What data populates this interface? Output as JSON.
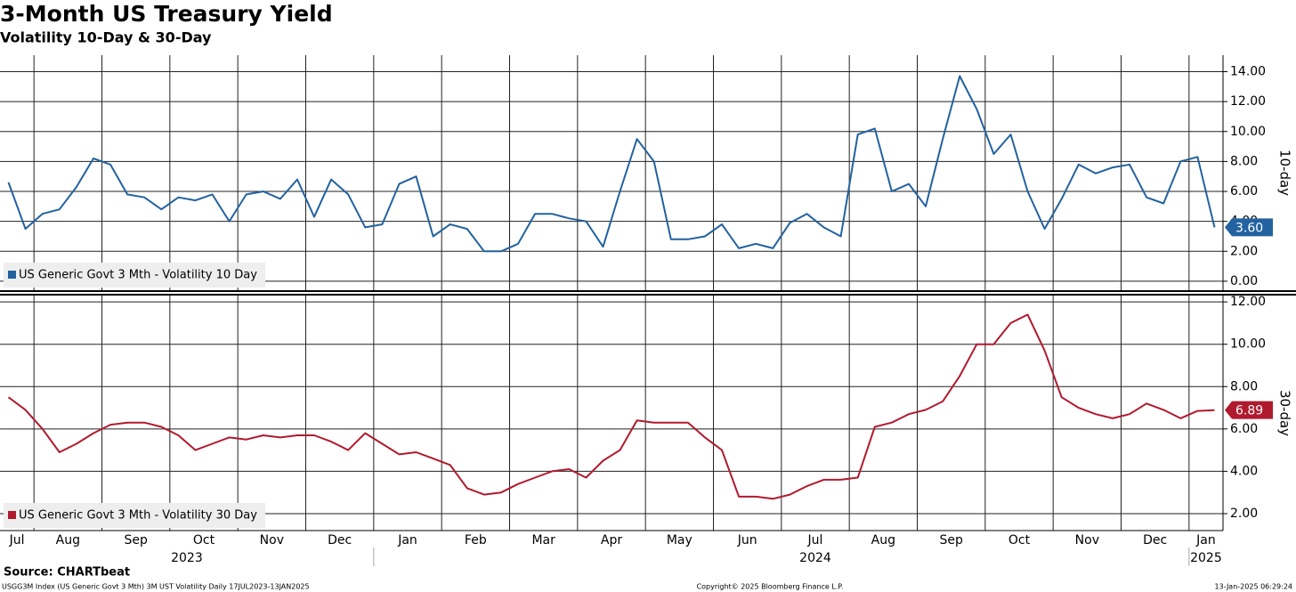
{
  "title": "3-Month US Treasury Yield",
  "subtitle": "Volatility 10-Day & 30-Day",
  "source": "Source: CHARTbeat",
  "footer": {
    "left": "USGG3M Index (US Generic Govt 3 Mth) 3M UST Volatility  Daily 17JUL2023-13JAN2025",
    "center": "Copyright© 2025 Bloomberg Finance L.P.",
    "right": "13-Jan-2025 06:29:24"
  },
  "chart_data": {
    "type": "line",
    "layout": "stacked",
    "grid": true,
    "categories": [
      null,
      "Jul",
      null,
      null,
      "Aug",
      null,
      null,
      null,
      "Sep",
      null,
      null,
      null,
      "Oct",
      null,
      null,
      null,
      "Nov",
      null,
      null,
      null,
      "Dec",
      null,
      null,
      null,
      "Jan",
      null,
      null,
      null,
      "Feb",
      null,
      null,
      null,
      "Mar",
      null,
      null,
      null,
      "Apr",
      null,
      null,
      null,
      "May",
      null,
      null,
      null,
      "Jun",
      null,
      null,
      null,
      "Jul",
      null,
      null,
      null,
      "Aug",
      null,
      null,
      null,
      "Sep",
      null,
      null,
      null,
      "Oct",
      null,
      null,
      null,
      "Nov",
      null,
      null,
      null,
      "Dec",
      null,
      null,
      "Jan"
    ],
    "years": [
      null,
      null,
      null,
      null,
      null,
      null,
      null,
      null,
      null,
      null,
      null,
      "2023",
      null,
      null,
      null,
      null,
      null,
      null,
      null,
      null,
      null,
      null,
      null,
      null,
      null,
      null,
      null,
      null,
      null,
      null,
      null,
      null,
      null,
      null,
      null,
      null,
      null,
      null,
      null,
      null,
      null,
      null,
      null,
      null,
      null,
      null,
      null,
      null,
      "2024",
      null,
      null,
      null,
      null,
      null,
      null,
      null,
      null,
      null,
      null,
      null,
      null,
      null,
      null,
      null,
      null,
      null,
      null,
      null,
      null,
      null,
      null,
      "2025"
    ],
    "ylabel": "10-day",
    "y2label": "30-day",
    "ylim": [
      -0.6,
      15.1
    ],
    "yticks": [
      {
        "value": 0,
        "label": "0.00"
      },
      {
        "value": 2,
        "label": "2.00"
      },
      {
        "value": 4,
        "label": "4.00"
      },
      {
        "value": 6,
        "label": "6.00"
      },
      {
        "value": 8,
        "label": "8.00"
      },
      {
        "value": 10,
        "label": "10.00"
      },
      {
        "value": 12,
        "label": "12.00"
      },
      {
        "value": 14,
        "label": "14.00"
      }
    ],
    "y2lim": [
      1.2,
      12.3
    ],
    "y2ticks": [
      {
        "value": 2,
        "label": "2.00"
      },
      {
        "value": 4,
        "label": "4.00"
      },
      {
        "value": 6,
        "label": "6.00"
      },
      {
        "value": 8,
        "label": "8.00"
      },
      {
        "value": 10,
        "label": "10.00"
      },
      {
        "value": 12,
        "label": "12.00"
      }
    ],
    "series": [
      {
        "name": "US Generic Govt 3 Mth - Volatility 10 Day",
        "color": "#2262a0",
        "axis": "y",
        "values": [
          6.6,
          3.5,
          4.5,
          4.8,
          6.3,
          8.2,
          7.8,
          5.8,
          5.6,
          4.8,
          5.6,
          5.4,
          5.8,
          4.0,
          5.8,
          6.0,
          5.5,
          6.8,
          4.3,
          6.8,
          5.8,
          3.6,
          3.8,
          6.5,
          7.0,
          3.0,
          3.8,
          3.5,
          2.0,
          2.0,
          2.5,
          4.5,
          4.5,
          4.2,
          4.0,
          2.3,
          6.0,
          9.5,
          8.0,
          2.8,
          2.8,
          3.0,
          3.8,
          2.2,
          2.5,
          2.2,
          3.9,
          4.5,
          3.6,
          3.0,
          9.8,
          10.2,
          6.0,
          6.5,
          5.0,
          9.5,
          13.7,
          11.5,
          8.5,
          9.8,
          6.0,
          3.5,
          5.5,
          7.8,
          7.2,
          7.6,
          7.8,
          5.6,
          5.2,
          8.0,
          8.3,
          3.6
        ],
        "value_labels": [
          null,
          null,
          null,
          null,
          null,
          null,
          null,
          null,
          null,
          null,
          null,
          null,
          null,
          null,
          null,
          null,
          null,
          null,
          null,
          null,
          null,
          null,
          null,
          null,
          null,
          null,
          null,
          null,
          null,
          null,
          null,
          null,
          null,
          null,
          null,
          null,
          null,
          null,
          null,
          null,
          null,
          null,
          null,
          null,
          null,
          null,
          null,
          null,
          null,
          null,
          null,
          null,
          null,
          null,
          null,
          null,
          null,
          null,
          null,
          null,
          null,
          null,
          null,
          null,
          null,
          null,
          null,
          null,
          null,
          null,
          null,
          "3.60"
        ]
      },
      {
        "name": "US Generic Govt 3 Mth - Volatility 30 Day",
        "color": "#b01a2e",
        "axis": "y2",
        "values": [
          7.5,
          6.9,
          6.0,
          4.9,
          5.3,
          5.8,
          6.2,
          6.3,
          6.3,
          6.1,
          5.7,
          5.0,
          5.3,
          5.6,
          5.5,
          5.7,
          5.6,
          5.7,
          5.7,
          5.4,
          5.0,
          5.8,
          5.3,
          4.8,
          4.9,
          4.6,
          4.3,
          3.2,
          2.9,
          3.0,
          3.4,
          3.7,
          4.0,
          4.1,
          3.7,
          4.5,
          5.0,
          6.4,
          6.3,
          6.3,
          6.3,
          5.6,
          5.0,
          2.8,
          2.8,
          2.7,
          2.9,
          3.3,
          3.6,
          3.6,
          3.7,
          6.1,
          6.3,
          6.7,
          6.9,
          7.3,
          8.5,
          10.0,
          10.0,
          11.0,
          11.4,
          9.7,
          7.5,
          7.0,
          6.7,
          6.5,
          6.7,
          7.2,
          6.9,
          6.5,
          6.85,
          6.89
        ],
        "value_labels": [
          null,
          null,
          null,
          null,
          null,
          null,
          null,
          null,
          null,
          null,
          null,
          null,
          null,
          null,
          null,
          null,
          null,
          null,
          null,
          null,
          null,
          null,
          null,
          null,
          null,
          null,
          null,
          null,
          null,
          null,
          null,
          null,
          null,
          null,
          null,
          null,
          null,
          null,
          null,
          null,
          null,
          null,
          null,
          null,
          null,
          null,
          null,
          null,
          null,
          null,
          null,
          null,
          null,
          null,
          null,
          null,
          null,
          null,
          null,
          null,
          null,
          null,
          null,
          null,
          null,
          null,
          null,
          null,
          null,
          null,
          null,
          "6.89"
        ]
      }
    ]
  }
}
